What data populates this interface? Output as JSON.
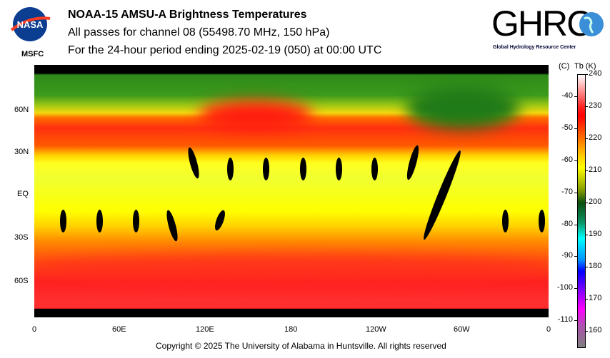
{
  "header": {
    "title": "NOAA-15 AMSU-A Brightness Temperatures",
    "line2": "All passes for channel 08 (55498.70 MHz, 150 hPa)",
    "line3": "For the 24-hour period ending 2025-02-19 (050) at 00:00 UTC"
  },
  "logos": {
    "nasa": "NASA",
    "msfc": "MSFC",
    "ghrc": "GHRC",
    "ghrc_sub": "Global Hydrology Resource Center"
  },
  "footer": "Copyright © 2025 The University of Alabama in Huntsville.  All rights reserved",
  "chart_data": {
    "type": "heatmap",
    "title": "NOAA-15 AMSU-A Brightness Temperatures",
    "x_ticks": [
      "0",
      "60E",
      "120E",
      "180",
      "120W",
      "60W",
      "0"
    ],
    "y_ticks": [
      "60N",
      "30N",
      "EQ",
      "30S",
      "60S"
    ],
    "xlim": [
      0,
      360
    ],
    "ylim": [
      -90,
      90
    ],
    "colorbar": {
      "label_c": "(C)",
      "label_k": "Tb  (K)",
      "k_ticks": [
        "240",
        "230",
        "220",
        "210",
        "200",
        "190",
        "180",
        "170",
        "160"
      ],
      "c_ticks": [
        "-40",
        "-50",
        "-60",
        "-70",
        "-80",
        "-90",
        "-100",
        "-110"
      ],
      "range_k": [
        155,
        240
      ]
    },
    "description_values": {
      "arctic_k": 203,
      "midlat_north_k": 228,
      "tropics_k": 213,
      "southern_midlat_k": 228
    }
  }
}
